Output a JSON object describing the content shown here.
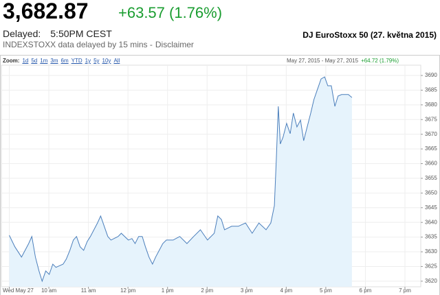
{
  "header": {
    "price": "3,682.87",
    "change": "+63.57 (1.76%)",
    "delayed_label": "Delayed:",
    "delayed_time": "5:50PM CEST",
    "source_note": "INDEXSTOXX data delayed by 15 mins -",
    "disclaimer": "Disclaimer",
    "index_title": "DJ EuroStoxx 50 (27. května 2015)"
  },
  "zoom": {
    "label": "Zoom:",
    "options": [
      "1d",
      "5d",
      "1m",
      "3m",
      "6m",
      "YTD",
      "1y",
      "5y",
      "10y",
      "All"
    ],
    "range": "May 27, 2015 - May 27, 2015",
    "range_change": "+64.72 (1.79%)"
  },
  "chart_data": {
    "type": "line",
    "color": "#4a7ebb",
    "area_color": "#e6f3fc",
    "grid": true,
    "x": [
      9.0,
      9.14,
      9.31,
      9.49,
      9.57,
      9.66,
      9.75,
      9.83,
      9.92,
      10.01,
      10.1,
      10.18,
      10.36,
      10.44,
      10.53,
      10.62,
      10.7,
      10.79,
      10.88,
      10.97,
      11.05,
      11.23,
      11.31,
      11.4,
      11.49,
      11.57,
      11.75,
      11.83,
      12.01,
      12.1,
      12.18,
      12.27,
      12.36,
      12.44,
      12.53,
      12.62,
      12.7,
      12.79,
      12.88,
      12.97,
      13.14,
      13.31,
      13.49,
      13.66,
      13.83,
      14.01,
      14.18,
      14.27,
      14.36,
      14.44,
      14.62,
      14.79,
      14.97,
      15.14,
      15.31,
      15.49,
      15.61,
      15.7,
      15.75,
      15.8,
      15.85,
      15.92,
      16.01,
      16.1,
      16.18,
      16.27,
      16.36,
      16.44,
      16.53,
      16.62,
      16.7,
      16.79,
      16.88,
      16.97,
      17.05,
      17.14,
      17.23,
      17.31,
      17.4,
      17.57,
      17.66
    ],
    "values": [
      3635.6,
      3631.7,
      3628.2,
      3632.8,
      3635.2,
      3628.2,
      3623.5,
      3620,
      3623.5,
      3622.3,
      3625.8,
      3624.7,
      3625.8,
      3627.5,
      3630.5,
      3634,
      3635.2,
      3631.7,
      3630.5,
      3633.5,
      3635.2,
      3639.8,
      3642.2,
      3638.7,
      3635.2,
      3634,
      3635.2,
      3636.3,
      3634,
      3634.5,
      3632.8,
      3635.2,
      3635.2,
      3631.7,
      3628.2,
      3625.8,
      3628.2,
      3630.5,
      3632.8,
      3634,
      3634,
      3635.2,
      3632.8,
      3635.2,
      3637.5,
      3634,
      3636.3,
      3642.2,
      3641,
      3637.5,
      3638.7,
      3638.7,
      3639.8,
      3636.3,
      3639.8,
      3637.5,
      3639.8,
      3645.7,
      3662,
      3679.5,
      3666.7,
      3669,
      3673.7,
      3670.2,
      3677.2,
      3672.5,
      3674.8,
      3667.8,
      3672.5,
      3677.2,
      3681.8,
      3685.3,
      3688.8,
      3689.5,
      3686.5,
      3686.5,
      3679.5,
      3683,
      3683.5,
      3683.5,
      3682.5
    ],
    "xlim": [
      8.8,
      19.4
    ],
    "xticks": [
      {
        "value": 9,
        "label": "Wed May 27"
      },
      {
        "value": 10,
        "label": "10 am"
      },
      {
        "value": 11,
        "label": "11 am"
      },
      {
        "value": 12,
        "label": "12 pm"
      },
      {
        "value": 13,
        "label": "1 pm"
      },
      {
        "value": 14,
        "label": "2 pm"
      },
      {
        "value": 15,
        "label": "3 pm"
      },
      {
        "value": 16,
        "label": "4 pm"
      },
      {
        "value": 17,
        "label": "5 pm"
      },
      {
        "value": 18,
        "label": "6 pm"
      },
      {
        "value": 19,
        "label": "7 pm"
      }
    ],
    "ylim": [
      3618.1,
      3693.5
    ],
    "yticks": [
      3620,
      3625,
      3630,
      3635,
      3640,
      3645,
      3650,
      3655,
      3660,
      3665,
      3670,
      3675,
      3680,
      3685,
      3690
    ]
  }
}
